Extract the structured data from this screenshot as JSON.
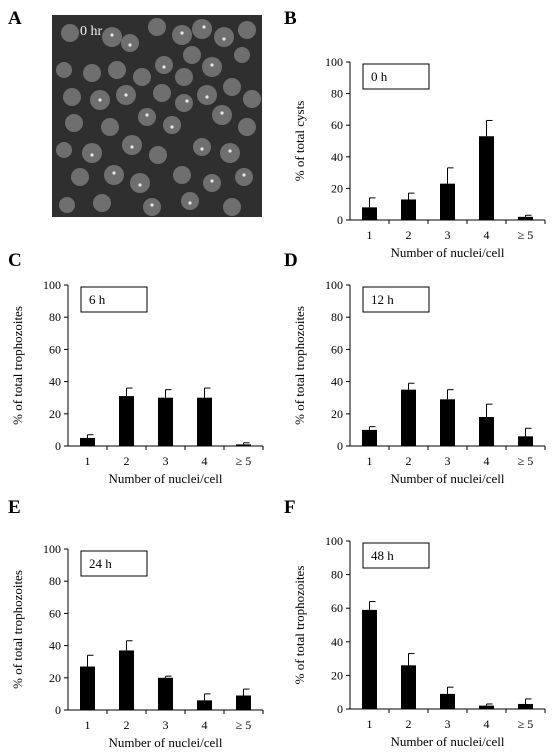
{
  "panels": {
    "A": "A",
    "B": "B",
    "C": "C",
    "D": "D",
    "E": "E",
    "F": "F"
  },
  "micrograph": {
    "label": "0 hr"
  },
  "chart_data": [
    {
      "id": "B",
      "type": "bar",
      "inset_label": "0 h",
      "categories": [
        "1",
        "2",
        "3",
        "4",
        "≥ 5"
      ],
      "values": [
        8,
        13,
        23,
        53,
        2
      ],
      "errors": [
        6,
        4,
        10,
        10,
        1
      ],
      "xlabel": "Number of nuclei/cell",
      "ylabel": "% of total cysts",
      "ylim": [
        0,
        100
      ],
      "yticks": [
        0,
        20,
        40,
        60,
        80,
        100
      ]
    },
    {
      "id": "C",
      "type": "bar",
      "inset_label": "6 h",
      "categories": [
        "1",
        "2",
        "3",
        "4",
        "≥ 5"
      ],
      "values": [
        5,
        31,
        30,
        30,
        1
      ],
      "errors": [
        2,
        5,
        5,
        6,
        1
      ],
      "xlabel": "Number of nuclei/cell",
      "ylabel": "% of total trophozoites",
      "ylim": [
        0,
        100
      ],
      "yticks": [
        0,
        20,
        40,
        60,
        80,
        100
      ]
    },
    {
      "id": "D",
      "type": "bar",
      "inset_label": "12 h",
      "categories": [
        "1",
        "2",
        "3",
        "4",
        "≥ 5"
      ],
      "values": [
        10,
        35,
        29,
        18,
        6
      ],
      "errors": [
        2,
        4,
        6,
        8,
        5
      ],
      "xlabel": "Number of nuclei/cell",
      "ylabel": "% of total trophozoites",
      "ylim": [
        0,
        100
      ],
      "yticks": [
        0,
        20,
        40,
        60,
        80,
        100
      ]
    },
    {
      "id": "E",
      "type": "bar",
      "inset_label": "24 h",
      "categories": [
        "1",
        "2",
        "3",
        "4",
        "≥ 5"
      ],
      "values": [
        27,
        37,
        20,
        6,
        9
      ],
      "errors": [
        7,
        6,
        1,
        4,
        4
      ],
      "xlabel": "Number of nuclei/cell",
      "ylabel": "% of total trophozoites",
      "ylim": [
        0,
        100
      ],
      "yticks": [
        0,
        20,
        40,
        60,
        80,
        100
      ]
    },
    {
      "id": "F",
      "type": "bar",
      "inset_label": "48 h",
      "categories": [
        "1",
        "2",
        "3",
        "4",
        "≥ 5"
      ],
      "values": [
        59,
        26,
        9,
        2,
        3
      ],
      "errors": [
        5,
        7,
        4,
        1,
        3
      ],
      "xlabel": "Number of nuclei/cell",
      "ylabel": "% of total trophozoites",
      "ylim": [
        0,
        100
      ],
      "yticks": [
        0,
        20,
        40,
        60,
        80,
        100
      ]
    }
  ]
}
